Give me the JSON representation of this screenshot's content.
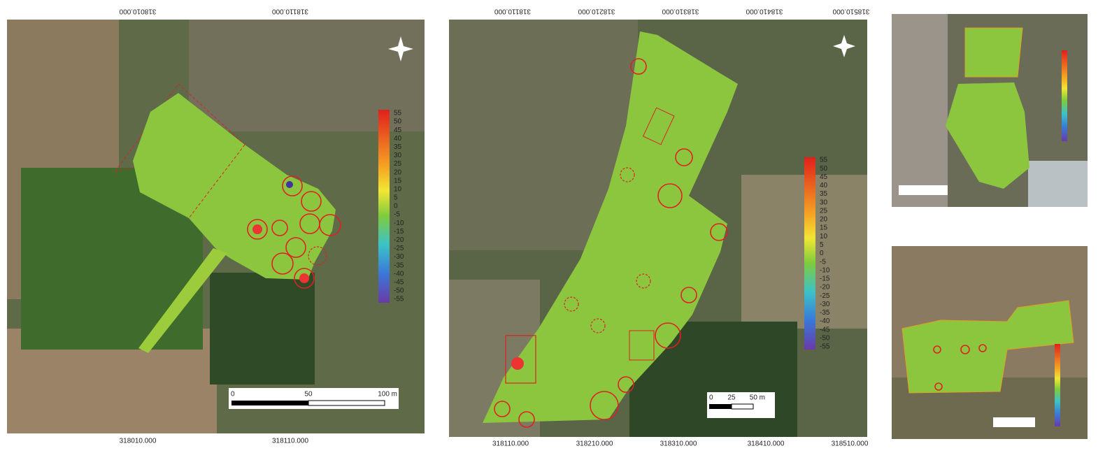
{
  "panels": [
    {
      "top_labels": [
        "318010.000",
        "318110.000"
      ],
      "bottom_labels": [
        "318010.000",
        "318110.000"
      ],
      "colorbar": [
        55,
        50,
        45,
        40,
        35,
        30,
        25,
        20,
        15,
        10,
        5,
        0,
        -5,
        -10,
        -15,
        -20,
        -25,
        -30,
        -35,
        -40,
        -45,
        -50,
        -55
      ],
      "scale_labels": [
        "0",
        "50",
        "100 m"
      ]
    },
    {
      "top_labels": [
        "318110.000",
        "318210.000",
        "318310.000",
        "318410.000",
        "318510.000"
      ],
      "bottom_labels": [
        "318110.000",
        "318210.000",
        "318310.000",
        "318410.000",
        "318510.000"
      ],
      "colorbar": [
        55,
        50,
        45,
        40,
        35,
        30,
        25,
        20,
        15,
        10,
        5,
        0,
        -5,
        -10,
        -15,
        -20,
        -25,
        -30,
        -35,
        -40,
        -45,
        -50,
        -55
      ],
      "scale_labels": [
        "0",
        "25",
        "50 m"
      ]
    }
  ]
}
